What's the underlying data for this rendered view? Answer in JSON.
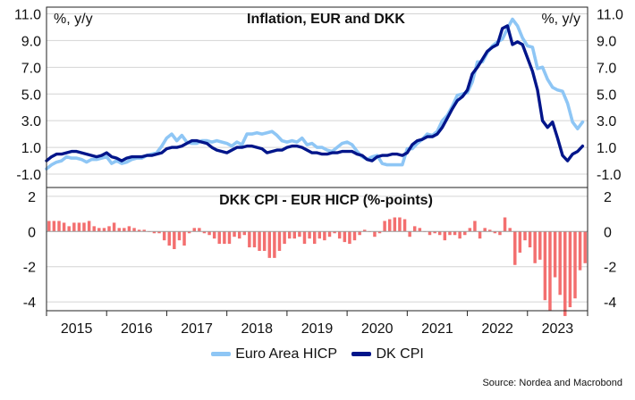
{
  "chart_data": [
    {
      "type": "line",
      "title": "Inflation, EUR and DKK",
      "ylabel_left": "%, y/y",
      "ylabel_right": "%, y/y",
      "ylim": [
        -2.0,
        11.5
      ],
      "yticks": [
        11.0,
        9.0,
        7.0,
        5.0,
        3.0,
        1.0,
        -1.0
      ],
      "ytick_labels": [
        "11.0",
        "9.0",
        "7.0",
        "5.0",
        "3.0",
        "1.0",
        "-1.0"
      ],
      "grid": true,
      "x_start": 2015.0,
      "x_end": 2024.0,
      "series": [
        {
          "name": "Euro Area HICP",
          "color": "#8ec6f5",
          "x": [
            2015.0,
            2015.083,
            2015.167,
            2015.25,
            2015.333,
            2015.417,
            2015.5,
            2015.583,
            2015.667,
            2015.75,
            2015.833,
            2015.917,
            2016.0,
            2016.083,
            2016.167,
            2016.25,
            2016.333,
            2016.417,
            2016.5,
            2016.583,
            2016.667,
            2016.75,
            2016.833,
            2016.917,
            2017.0,
            2017.083,
            2017.167,
            2017.25,
            2017.333,
            2017.417,
            2017.5,
            2017.583,
            2017.667,
            2017.75,
            2017.833,
            2017.917,
            2018.0,
            2018.083,
            2018.167,
            2018.25,
            2018.333,
            2018.417,
            2018.5,
            2018.583,
            2018.667,
            2018.75,
            2018.833,
            2018.917,
            2019.0,
            2019.083,
            2019.167,
            2019.25,
            2019.333,
            2019.417,
            2019.5,
            2019.583,
            2019.667,
            2019.75,
            2019.833,
            2019.917,
            2020.0,
            2020.083,
            2020.167,
            2020.25,
            2020.333,
            2020.417,
            2020.5,
            2020.583,
            2020.667,
            2020.75,
            2020.833,
            2020.917,
            2021.0,
            2021.083,
            2021.167,
            2021.25,
            2021.333,
            2021.417,
            2021.5,
            2021.583,
            2021.667,
            2021.75,
            2021.833,
            2021.917,
            2022.0,
            2022.083,
            2022.167,
            2022.25,
            2022.333,
            2022.417,
            2022.5,
            2022.583,
            2022.667,
            2022.75,
            2022.833,
            2022.917,
            2023.0,
            2023.083,
            2023.167,
            2023.25,
            2023.333,
            2023.417,
            2023.5,
            2023.583,
            2023.667,
            2023.75,
            2023.833,
            2023.917
          ],
          "values": [
            -0.6,
            -0.3,
            -0.1,
            0.0,
            0.3,
            0.2,
            0.2,
            0.1,
            -0.1,
            0.1,
            0.1,
            0.2,
            0.3,
            -0.2,
            0.0,
            -0.2,
            -0.1,
            0.1,
            0.2,
            0.2,
            0.4,
            0.5,
            0.6,
            1.1,
            1.7,
            2.0,
            1.5,
            1.9,
            1.4,
            1.3,
            1.3,
            1.5,
            1.5,
            1.4,
            1.5,
            1.4,
            1.3,
            1.1,
            1.4,
            1.2,
            2.0,
            2.0,
            2.1,
            2.0,
            2.1,
            2.2,
            1.9,
            1.5,
            1.4,
            1.5,
            1.4,
            1.7,
            1.2,
            1.3,
            1.0,
            1.0,
            0.8,
            0.7,
            1.0,
            1.3,
            1.4,
            1.2,
            0.7,
            0.3,
            0.1,
            0.3,
            0.4,
            -0.2,
            -0.3,
            -0.3,
            -0.3,
            -0.3,
            0.9,
            0.9,
            1.3,
            1.6,
            2.0,
            1.9,
            2.2,
            3.0,
            3.4,
            4.1,
            4.9,
            5.0,
            5.1,
            5.9,
            7.4,
            7.4,
            8.1,
            8.6,
            8.9,
            9.1,
            9.9,
            10.6,
            10.1,
            9.2,
            8.6,
            8.5,
            6.9,
            7.0,
            6.1,
            5.5,
            5.3,
            5.2,
            4.3,
            2.9,
            2.4,
            2.9
          ]
        },
        {
          "name": "DK CPI",
          "color": "#00158a",
          "x": [
            2015.0,
            2015.083,
            2015.167,
            2015.25,
            2015.333,
            2015.417,
            2015.5,
            2015.583,
            2015.667,
            2015.75,
            2015.833,
            2015.917,
            2016.0,
            2016.083,
            2016.167,
            2016.25,
            2016.333,
            2016.417,
            2016.5,
            2016.583,
            2016.667,
            2016.75,
            2016.833,
            2016.917,
            2017.0,
            2017.083,
            2017.167,
            2017.25,
            2017.333,
            2017.417,
            2017.5,
            2017.583,
            2017.667,
            2017.75,
            2017.833,
            2017.917,
            2018.0,
            2018.083,
            2018.167,
            2018.25,
            2018.333,
            2018.417,
            2018.5,
            2018.583,
            2018.667,
            2018.75,
            2018.833,
            2018.917,
            2019.0,
            2019.083,
            2019.167,
            2019.25,
            2019.333,
            2019.417,
            2019.5,
            2019.583,
            2019.667,
            2019.75,
            2019.833,
            2019.917,
            2020.0,
            2020.083,
            2020.167,
            2020.25,
            2020.333,
            2020.417,
            2020.5,
            2020.583,
            2020.667,
            2020.75,
            2020.833,
            2020.917,
            2021.0,
            2021.083,
            2021.167,
            2021.25,
            2021.333,
            2021.417,
            2021.5,
            2021.583,
            2021.667,
            2021.75,
            2021.833,
            2021.917,
            2022.0,
            2022.083,
            2022.167,
            2022.25,
            2022.333,
            2022.417,
            2022.5,
            2022.583,
            2022.667,
            2022.75,
            2022.833,
            2022.917,
            2023.0,
            2023.083,
            2023.167,
            2023.25,
            2023.333,
            2023.417,
            2023.5,
            2023.583,
            2023.667,
            2023.75,
            2023.833,
            2023.917
          ],
          "values": [
            0.0,
            0.3,
            0.5,
            0.5,
            0.6,
            0.7,
            0.7,
            0.6,
            0.5,
            0.4,
            0.3,
            0.4,
            0.6,
            0.3,
            0.2,
            0.0,
            0.2,
            0.3,
            0.3,
            0.3,
            0.4,
            0.4,
            0.5,
            0.6,
            0.9,
            1.0,
            1.0,
            1.1,
            1.3,
            1.5,
            1.5,
            1.4,
            1.3,
            1.0,
            0.8,
            0.7,
            0.6,
            0.8,
            1.0,
            1.0,
            1.1,
            1.1,
            1.0,
            0.9,
            0.6,
            0.7,
            0.8,
            0.8,
            1.0,
            1.1,
            1.1,
            1.0,
            0.8,
            0.6,
            0.6,
            0.5,
            0.5,
            0.6,
            0.6,
            0.7,
            0.7,
            0.7,
            0.5,
            0.4,
            0.1,
            0.0,
            0.3,
            0.4,
            0.4,
            0.5,
            0.5,
            0.4,
            0.6,
            1.2,
            1.5,
            1.6,
            1.8,
            1.8,
            2.0,
            2.5,
            3.2,
            3.9,
            4.5,
            4.8,
            5.3,
            6.5,
            7.0,
            7.6,
            8.2,
            8.5,
            8.7,
            9.9,
            10.1,
            8.7,
            8.9,
            8.7,
            7.7,
            6.7,
            5.3,
            3.0,
            2.5,
            2.9,
            1.7,
            0.4,
            0.0,
            0.5,
            0.7,
            1.1
          ]
        }
      ]
    },
    {
      "type": "bar",
      "title": "DKK CPI - EUR HICP (%-points)",
      "ylim": [
        -4.5,
        2.5
      ],
      "yticks": [
        2,
        0,
        -2,
        -4
      ],
      "ytick_labels": [
        "2",
        "0",
        "-2",
        "-4"
      ],
      "grid": true,
      "bar_color": "#f36f6f",
      "x_start": 2015.0,
      "x_end": 2024.0,
      "x": [
        2015.0,
        2015.083,
        2015.167,
        2015.25,
        2015.333,
        2015.417,
        2015.5,
        2015.583,
        2015.667,
        2015.75,
        2015.833,
        2015.917,
        2016.0,
        2016.083,
        2016.167,
        2016.25,
        2016.333,
        2016.417,
        2016.5,
        2016.583,
        2016.667,
        2016.75,
        2016.833,
        2016.917,
        2017.0,
        2017.083,
        2017.167,
        2017.25,
        2017.333,
        2017.417,
        2017.5,
        2017.583,
        2017.667,
        2017.75,
        2017.833,
        2017.917,
        2018.0,
        2018.083,
        2018.167,
        2018.25,
        2018.333,
        2018.417,
        2018.5,
        2018.583,
        2018.667,
        2018.75,
        2018.833,
        2018.917,
        2019.0,
        2019.083,
        2019.167,
        2019.25,
        2019.333,
        2019.417,
        2019.5,
        2019.583,
        2019.667,
        2019.75,
        2019.833,
        2019.917,
        2020.0,
        2020.083,
        2020.167,
        2020.25,
        2020.333,
        2020.417,
        2020.5,
        2020.583,
        2020.667,
        2020.75,
        2020.833,
        2020.917,
        2021.0,
        2021.083,
        2021.167,
        2021.25,
        2021.333,
        2021.417,
        2021.5,
        2021.583,
        2021.667,
        2021.75,
        2021.833,
        2021.917,
        2022.0,
        2022.083,
        2022.167,
        2022.25,
        2022.333,
        2022.417,
        2022.5,
        2022.583,
        2022.667,
        2022.75,
        2022.833,
        2022.917,
        2023.0,
        2023.083,
        2023.167,
        2023.25,
        2023.333,
        2023.417,
        2023.5,
        2023.583,
        2023.667,
        2023.75,
        2023.833,
        2023.917
      ],
      "values": [
        0.6,
        0.6,
        0.6,
        0.5,
        0.3,
        0.5,
        0.5,
        0.5,
        0.6,
        0.3,
        0.2,
        0.2,
        0.3,
        0.5,
        0.2,
        0.2,
        0.3,
        0.2,
        0.1,
        0.1,
        0.0,
        -0.1,
        -0.1,
        -0.5,
        -0.8,
        -1.0,
        -0.5,
        -0.8,
        -0.1,
        0.2,
        0.2,
        -0.1,
        -0.2,
        -0.4,
        -0.7,
        -0.7,
        -0.7,
        -0.3,
        -0.4,
        -0.2,
        -0.9,
        -0.9,
        -1.1,
        -1.1,
        -1.5,
        -1.5,
        -1.1,
        -0.7,
        -0.4,
        -0.4,
        -0.3,
        -0.7,
        -0.4,
        -0.7,
        -0.4,
        -0.5,
        -0.3,
        -0.1,
        -0.4,
        -0.6,
        -0.7,
        -0.5,
        -0.2,
        0.1,
        0.0,
        -0.3,
        -0.1,
        0.6,
        0.7,
        0.8,
        0.8,
        0.7,
        -0.3,
        0.3,
        0.2,
        0.0,
        -0.2,
        -0.1,
        -0.2,
        -0.5,
        -0.2,
        -0.2,
        -0.4,
        -0.2,
        0.2,
        0.6,
        -0.4,
        0.2,
        0.1,
        -0.1,
        -0.2,
        0.8,
        0.2,
        -1.9,
        -1.2,
        -0.5,
        -0.9,
        -1.8,
        -1.6,
        -3.9,
        -4.5,
        -2.6,
        -3.6,
        -4.8,
        -4.3,
        -3.8,
        -2.2,
        -1.8
      ]
    }
  ],
  "x_axis": {
    "tick_labels": [
      "2015",
      "2016",
      "2017",
      "2018",
      "2019",
      "2020",
      "2021",
      "2022",
      "2023"
    ]
  },
  "legend": {
    "items": [
      {
        "label": "Euro Area HICP",
        "color": "#8ec6f5"
      },
      {
        "label": "DK CPI",
        "color": "#00158a"
      }
    ],
    "placement": "bottom"
  },
  "source": "Source: Nordea and Macrobond"
}
